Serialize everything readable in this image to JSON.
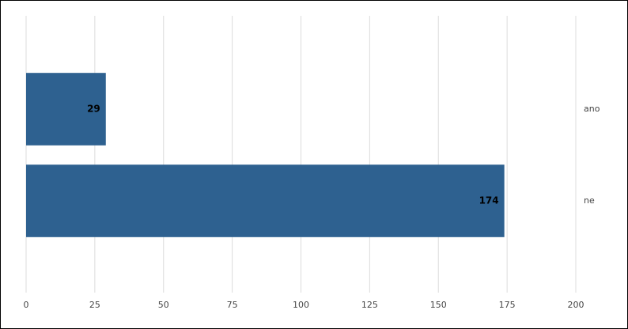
{
  "chart_data": {
    "type": "bar",
    "orientation": "horizontal",
    "categories": [
      "ano",
      "ne"
    ],
    "values": [
      29,
      174
    ],
    "color": "#2e6190",
    "xlim": [
      0,
      200
    ],
    "xticks": [
      0,
      25,
      50,
      75,
      100,
      125,
      150,
      175,
      200
    ],
    "grid": true
  }
}
